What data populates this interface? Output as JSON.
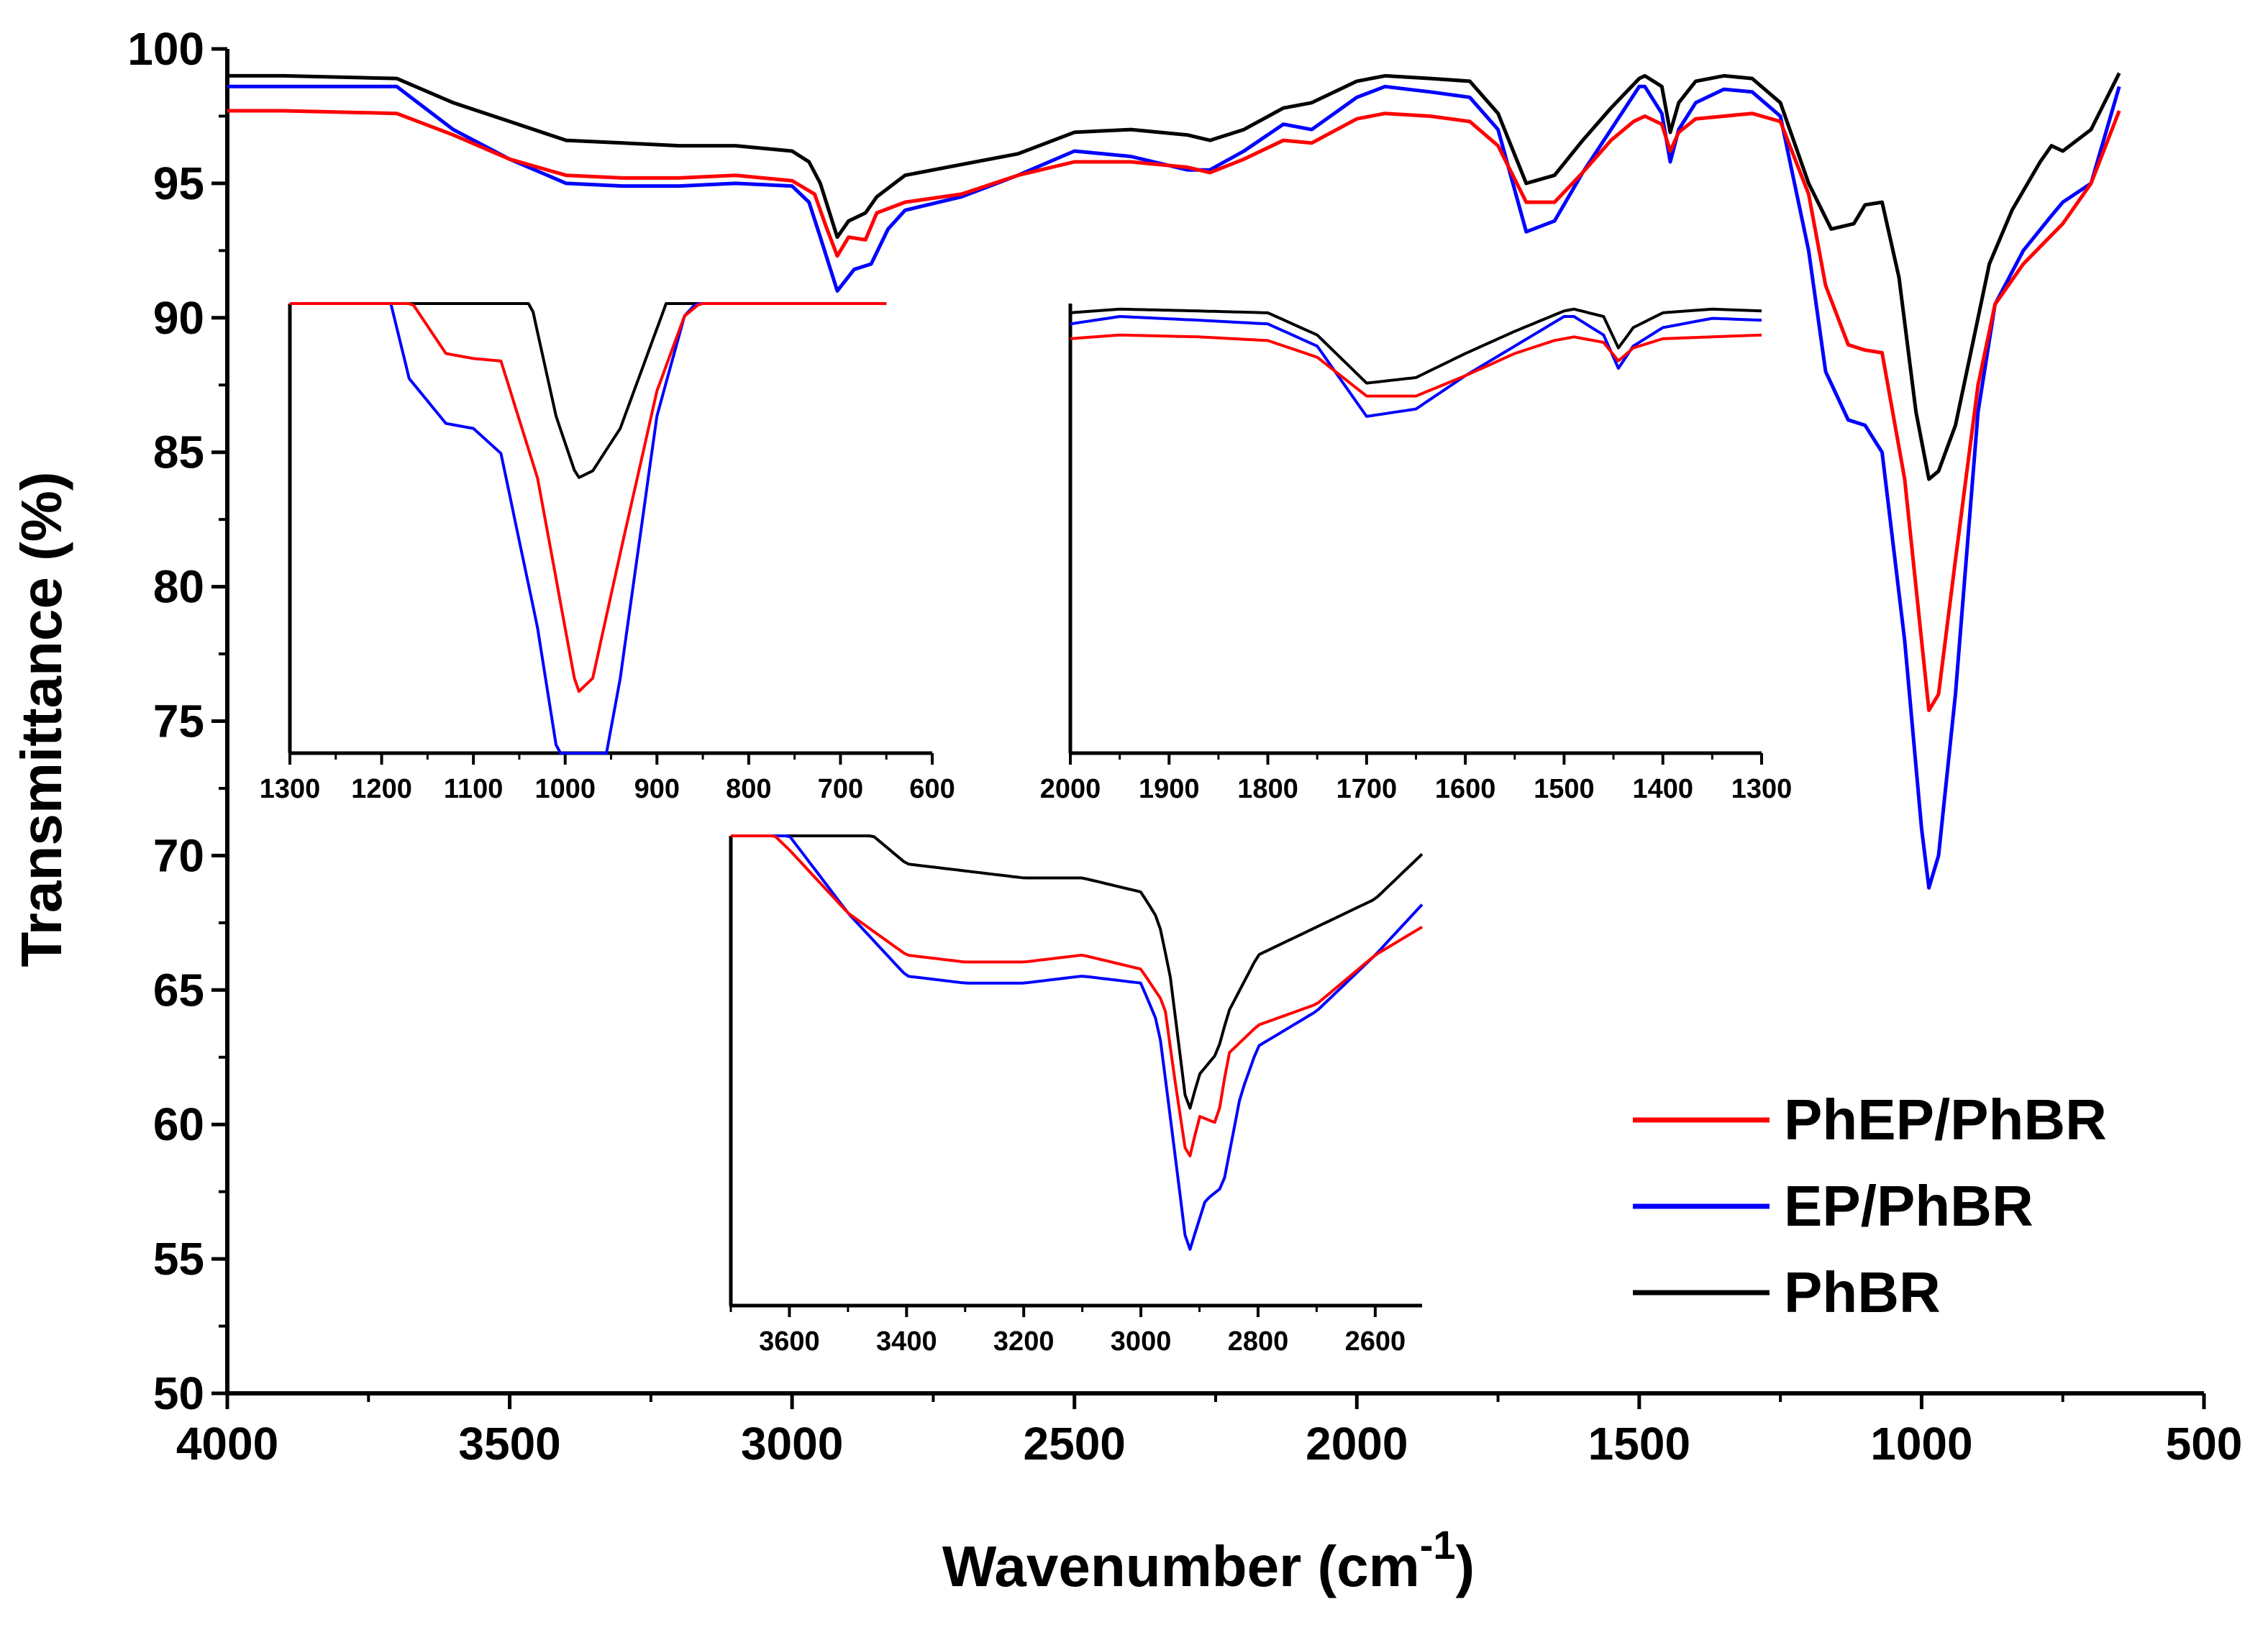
{
  "chart_data": {
    "type": "line",
    "xlabel": "Wavenumber (cm",
    "xlabel_sup": "-1",
    "xlabel_suffix": ")",
    "ylabel": "Transmittance (%)",
    "xlim": [
      4000,
      500
    ],
    "ylim": [
      50,
      100
    ],
    "xticks": [
      4000,
      3500,
      3000,
      2500,
      2000,
      1500,
      1000,
      500
    ],
    "yticks": [
      50,
      55,
      60,
      65,
      70,
      75,
      80,
      85,
      90,
      95,
      100
    ],
    "legend_position": "lower-right",
    "series": [
      {
        "name": "PhEP/PhBR",
        "color": "#ff0000",
        "points": [
          [
            4000,
            97.7
          ],
          [
            3900,
            97.7
          ],
          [
            3700,
            97.6
          ],
          [
            3600,
            96.8
          ],
          [
            3500,
            95.9
          ],
          [
            3400,
            95.3
          ],
          [
            3300,
            95.2
          ],
          [
            3200,
            95.2
          ],
          [
            3100,
            95.3
          ],
          [
            3000,
            95.1
          ],
          [
            2960,
            94.6
          ],
          [
            2940,
            93.4
          ],
          [
            2920,
            92.3
          ],
          [
            2900,
            93.0
          ],
          [
            2870,
            92.9
          ],
          [
            2850,
            93.9
          ],
          [
            2800,
            94.3
          ],
          [
            2700,
            94.6
          ],
          [
            2600,
            95.3
          ],
          [
            2500,
            95.8
          ],
          [
            2400,
            95.8
          ],
          [
            2300,
            95.6
          ],
          [
            2260,
            95.4
          ],
          [
            2200,
            95.9
          ],
          [
            2130,
            96.6
          ],
          [
            2080,
            96.5
          ],
          [
            2000,
            97.4
          ],
          [
            1950,
            97.6
          ],
          [
            1870,
            97.5
          ],
          [
            1800,
            97.3
          ],
          [
            1750,
            96.4
          ],
          [
            1700,
            94.3
          ],
          [
            1650,
            94.3
          ],
          [
            1600,
            95.4
          ],
          [
            1550,
            96.6
          ],
          [
            1510,
            97.3
          ],
          [
            1490,
            97.5
          ],
          [
            1460,
            97.2
          ],
          [
            1445,
            96.2
          ],
          [
            1430,
            96.9
          ],
          [
            1400,
            97.4
          ],
          [
            1350,
            97.5
          ],
          [
            1300,
            97.6
          ],
          [
            1250,
            97.3
          ],
          [
            1200,
            94.6
          ],
          [
            1170,
            91.2
          ],
          [
            1130,
            89.0
          ],
          [
            1100,
            88.8
          ],
          [
            1070,
            88.7
          ],
          [
            1030,
            84.0
          ],
          [
            1000,
            78.0
          ],
          [
            987,
            75.4
          ],
          [
            970,
            76.0
          ],
          [
            940,
            81.0
          ],
          [
            900,
            87.5
          ],
          [
            870,
            90.5
          ],
          [
            820,
            92.0
          ],
          [
            750,
            93.5
          ],
          [
            700,
            95.0
          ],
          [
            650,
            97.7
          ]
        ]
      },
      {
        "name": "EP/PhBR",
        "color": "#0000ff",
        "points": [
          [
            4000,
            98.6
          ],
          [
            3900,
            98.6
          ],
          [
            3700,
            98.6
          ],
          [
            3600,
            97.0
          ],
          [
            3500,
            95.9
          ],
          [
            3400,
            95.0
          ],
          [
            3300,
            94.9
          ],
          [
            3200,
            94.9
          ],
          [
            3100,
            95.0
          ],
          [
            3000,
            94.9
          ],
          [
            2970,
            94.3
          ],
          [
            2950,
            93.0
          ],
          [
            2920,
            91.0
          ],
          [
            2890,
            91.8
          ],
          [
            2860,
            92.0
          ],
          [
            2830,
            93.3
          ],
          [
            2800,
            94.0
          ],
          [
            2700,
            94.5
          ],
          [
            2600,
            95.3
          ],
          [
            2500,
            96.2
          ],
          [
            2400,
            96.0
          ],
          [
            2300,
            95.5
          ],
          [
            2260,
            95.5
          ],
          [
            2200,
            96.2
          ],
          [
            2130,
            97.2
          ],
          [
            2080,
            97.0
          ],
          [
            2000,
            98.2
          ],
          [
            1950,
            98.6
          ],
          [
            1870,
            98.4
          ],
          [
            1800,
            98.2
          ],
          [
            1750,
            97.0
          ],
          [
            1700,
            93.2
          ],
          [
            1650,
            93.6
          ],
          [
            1600,
            95.4
          ],
          [
            1550,
            97.0
          ],
          [
            1500,
            98.6
          ],
          [
            1490,
            98.6
          ],
          [
            1460,
            97.6
          ],
          [
            1445,
            95.8
          ],
          [
            1430,
            97.0
          ],
          [
            1400,
            98.0
          ],
          [
            1350,
            98.5
          ],
          [
            1300,
            98.4
          ],
          [
            1250,
            97.5
          ],
          [
            1200,
            92.5
          ],
          [
            1170,
            88.0
          ],
          [
            1130,
            86.2
          ],
          [
            1100,
            86.0
          ],
          [
            1070,
            85.0
          ],
          [
            1030,
            78.0
          ],
          [
            1000,
            71.0
          ],
          [
            987,
            68.8
          ],
          [
            970,
            70.0
          ],
          [
            940,
            76.0
          ],
          [
            900,
            86.5
          ],
          [
            870,
            90.5
          ],
          [
            820,
            92.5
          ],
          [
            770,
            93.8
          ],
          [
            750,
            94.3
          ],
          [
            700,
            95.0
          ],
          [
            650,
            98.6
          ]
        ]
      },
      {
        "name": "PhBR",
        "color": "#000000",
        "points": [
          [
            4000,
            99.0
          ],
          [
            3900,
            99.0
          ],
          [
            3700,
            98.9
          ],
          [
            3600,
            98.0
          ],
          [
            3500,
            97.3
          ],
          [
            3400,
            96.6
          ],
          [
            3300,
            96.5
          ],
          [
            3200,
            96.4
          ],
          [
            3100,
            96.4
          ],
          [
            3000,
            96.2
          ],
          [
            2970,
            95.8
          ],
          [
            2950,
            95.0
          ],
          [
            2920,
            93.0
          ],
          [
            2900,
            93.6
          ],
          [
            2870,
            93.9
          ],
          [
            2850,
            94.5
          ],
          [
            2800,
            95.3
          ],
          [
            2700,
            95.7
          ],
          [
            2600,
            96.1
          ],
          [
            2500,
            96.9
          ],
          [
            2400,
            97.0
          ],
          [
            2300,
            96.8
          ],
          [
            2260,
            96.6
          ],
          [
            2200,
            97.0
          ],
          [
            2130,
            97.8
          ],
          [
            2080,
            98.0
          ],
          [
            2000,
            98.8
          ],
          [
            1950,
            99.0
          ],
          [
            1870,
            98.9
          ],
          [
            1800,
            98.8
          ],
          [
            1750,
            97.6
          ],
          [
            1700,
            95.0
          ],
          [
            1650,
            95.3
          ],
          [
            1600,
            96.6
          ],
          [
            1550,
            97.8
          ],
          [
            1500,
            98.9
          ],
          [
            1490,
            99.0
          ],
          [
            1460,
            98.6
          ],
          [
            1445,
            96.9
          ],
          [
            1430,
            98.0
          ],
          [
            1400,
            98.8
          ],
          [
            1350,
            99.0
          ],
          [
            1300,
            98.9
          ],
          [
            1250,
            98.0
          ],
          [
            1200,
            95.0
          ],
          [
            1160,
            93.3
          ],
          [
            1120,
            93.5
          ],
          [
            1100,
            94.2
          ],
          [
            1070,
            94.3
          ],
          [
            1040,
            91.5
          ],
          [
            1010,
            86.5
          ],
          [
            987,
            84.0
          ],
          [
            970,
            84.3
          ],
          [
            940,
            86.0
          ],
          [
            910,
            89.0
          ],
          [
            880,
            92.0
          ],
          [
            840,
            94.0
          ],
          [
            790,
            95.8
          ],
          [
            770,
            96.4
          ],
          [
            750,
            96.2
          ],
          [
            700,
            97.0
          ],
          [
            650,
            99.1
          ]
        ]
      }
    ],
    "insets": [
      {
        "xlim": [
          1300,
          600
        ],
        "xticks": [
          1300,
          1200,
          1100,
          1000,
          900,
          800,
          700,
          600
        ],
        "ylim": [
          73,
          91
        ]
      },
      {
        "xlim": [
          2000,
          1300
        ],
        "xticks": [
          2000,
          1900,
          1800,
          1700,
          1600,
          1500,
          1400,
          1300
        ],
        "ylim": [
          75,
          99.3
        ]
      },
      {
        "xlim": [
          3700,
          2520
        ],
        "xticks": [
          3600,
          3400,
          3200,
          3000,
          2800,
          2600
        ],
        "ylim": [
          90.3,
          97.0
        ]
      }
    ]
  }
}
